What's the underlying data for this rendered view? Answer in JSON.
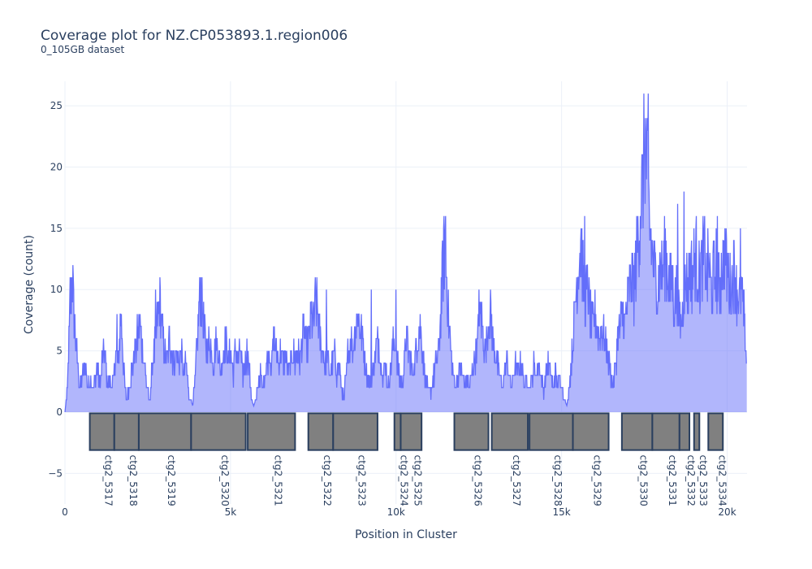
{
  "title": "Coverage plot for NZ.CP053893.1.region006",
  "subtitle": "0_105GB dataset",
  "colors": {
    "line": "#636efa",
    "fill": "rgba(99,110,250,0.5)",
    "gene_fill": "#808080",
    "gene_stroke": "#2a3f5f",
    "grid": "#ebf0f8"
  },
  "chart_data": {
    "type": "area",
    "xlabel": "Position in Cluster",
    "ylabel": "Coverage (count)",
    "xlim": [
      0,
      20600
    ],
    "ylim": [
      -7.5,
      27
    ],
    "x_ticks": [
      0,
      5000,
      10000,
      15000,
      20000
    ],
    "x_tick_labels": [
      "0",
      "5k",
      "10k",
      "15k",
      "20k"
    ],
    "y_ticks": [
      -5,
      0,
      5,
      10,
      15,
      20,
      25
    ],
    "y_tick_labels": [
      "−5",
      "0",
      "5",
      "10",
      "15",
      "20",
      "25"
    ],
    "grid": true,
    "coverage_profile": [
      [
        0,
        0
      ],
      [
        80,
        2
      ],
      [
        150,
        8
      ],
      [
        220,
        11
      ],
      [
        300,
        7
      ],
      [
        380,
        4
      ],
      [
        460,
        2
      ],
      [
        540,
        3
      ],
      [
        620,
        4
      ],
      [
        700,
        2
      ],
      [
        780,
        3
      ],
      [
        860,
        2
      ],
      [
        920,
        3
      ],
      [
        980,
        4
      ],
      [
        1050,
        2
      ],
      [
        1120,
        4
      ],
      [
        1200,
        5
      ],
      [
        1280,
        2
      ],
      [
        1350,
        3
      ],
      [
        1420,
        2
      ],
      [
        1480,
        3
      ],
      [
        1550,
        5
      ],
      [
        1620,
        4
      ],
      [
        1680,
        8
      ],
      [
        1730,
        6
      ],
      [
        1790,
        3
      ],
      [
        1850,
        1
      ],
      [
        1920,
        2
      ],
      [
        1990,
        3
      ],
      [
        2060,
        4
      ],
      [
        2130,
        5
      ],
      [
        2200,
        6
      ],
      [
        2280,
        7
      ],
      [
        2340,
        5
      ],
      [
        2410,
        4
      ],
      [
        2480,
        2
      ],
      [
        2550,
        1
      ],
      [
        2620,
        3
      ],
      [
        2700,
        5
      ],
      [
        2780,
        7
      ],
      [
        2860,
        9
      ],
      [
        2930,
        7
      ],
      [
        3000,
        5
      ],
      [
        3080,
        4
      ],
      [
        3150,
        6
      ],
      [
        3220,
        5
      ],
      [
        3300,
        4
      ],
      [
        3370,
        5
      ],
      [
        3440,
        4
      ],
      [
        3510,
        5
      ],
      [
        3580,
        3
      ],
      [
        3650,
        4
      ],
      [
        3720,
        2
      ],
      [
        3800,
        1
      ],
      [
        3860,
        0.5
      ],
      [
        3920,
        2
      ],
      [
        3980,
        5
      ],
      [
        4040,
        8
      ],
      [
        4100,
        10
      ],
      [
        4160,
        8
      ],
      [
        4220,
        6
      ],
      [
        4290,
        5
      ],
      [
        4360,
        6
      ],
      [
        4430,
        5
      ],
      [
        4500,
        4
      ],
      [
        4570,
        6
      ],
      [
        4640,
        5
      ],
      [
        4710,
        3
      ],
      [
        4790,
        5
      ],
      [
        4860,
        6
      ],
      [
        4930,
        4
      ],
      [
        5000,
        5
      ],
      [
        5080,
        3
      ],
      [
        5150,
        5
      ],
      [
        5230,
        4
      ],
      [
        5300,
        5
      ],
      [
        5370,
        3
      ],
      [
        5440,
        4
      ],
      [
        5510,
        5
      ],
      [
        5580,
        3
      ],
      [
        5640,
        1
      ],
      [
        5700,
        0.5
      ],
      [
        5760,
        1
      ],
      [
        5830,
        2
      ],
      [
        5900,
        3
      ],
      [
        5970,
        2
      ],
      [
        6040,
        3
      ],
      [
        6100,
        4
      ],
      [
        6170,
        5
      ],
      [
        6240,
        4
      ],
      [
        6310,
        6
      ],
      [
        6380,
        5
      ],
      [
        6450,
        4
      ],
      [
        6520,
        5
      ],
      [
        6600,
        4
      ],
      [
        6670,
        5
      ],
      [
        6740,
        3
      ],
      [
        6810,
        4
      ],
      [
        6880,
        5
      ],
      [
        6950,
        4
      ],
      [
        7020,
        5
      ],
      [
        7100,
        4
      ],
      [
        7160,
        6
      ],
      [
        7230,
        7
      ],
      [
        7300,
        5
      ],
      [
        7370,
        6
      ],
      [
        7440,
        8
      ],
      [
        7500,
        7
      ],
      [
        7560,
        9
      ],
      [
        7630,
        8
      ],
      [
        7700,
        6
      ],
      [
        7780,
        5
      ],
      [
        7850,
        4
      ],
      [
        7920,
        5
      ],
      [
        8000,
        3
      ],
      [
        8070,
        4
      ],
      [
        8140,
        5
      ],
      [
        8210,
        3
      ],
      [
        8280,
        4
      ],
      [
        8350,
        2
      ],
      [
        8420,
        1
      ],
      [
        8490,
        3
      ],
      [
        8560,
        5
      ],
      [
        8630,
        6
      ],
      [
        8700,
        5
      ],
      [
        8770,
        7
      ],
      [
        8840,
        8
      ],
      [
        8920,
        7
      ],
      [
        8990,
        6
      ],
      [
        9060,
        4
      ],
      [
        9130,
        3
      ],
      [
        9200,
        2
      ],
      [
        9270,
        3
      ],
      [
        9340,
        4
      ],
      [
        9400,
        5
      ],
      [
        9470,
        6
      ],
      [
        9540,
        4
      ],
      [
        9610,
        3
      ],
      [
        9680,
        4
      ],
      [
        9750,
        2
      ],
      [
        9820,
        3
      ],
      [
        9890,
        5
      ],
      [
        9960,
        6
      ],
      [
        10030,
        4
      ],
      [
        10100,
        3
      ],
      [
        10170,
        2
      ],
      [
        10240,
        4
      ],
      [
        10310,
        6
      ],
      [
        10380,
        5
      ],
      [
        10450,
        4
      ],
      [
        10520,
        3
      ],
      [
        10590,
        5
      ],
      [
        10660,
        6
      ],
      [
        10730,
        7
      ],
      [
        10800,
        5
      ],
      [
        10870,
        3
      ],
      [
        10940,
        2
      ],
      [
        11000,
        1.5
      ],
      [
        11070,
        2
      ],
      [
        11140,
        3
      ],
      [
        11220,
        4
      ],
      [
        11290,
        5
      ],
      [
        11360,
        9
      ],
      [
        11420,
        12
      ],
      [
        11480,
        14
      ],
      [
        11540,
        10
      ],
      [
        11600,
        7
      ],
      [
        11660,
        5
      ],
      [
        11730,
        3
      ],
      [
        11800,
        2
      ],
      [
        11870,
        3
      ],
      [
        11940,
        4
      ],
      [
        12010,
        3
      ],
      [
        12080,
        2
      ],
      [
        12150,
        3
      ],
      [
        12220,
        2
      ],
      [
        12290,
        3
      ],
      [
        12360,
        4
      ],
      [
        12430,
        5
      ],
      [
        12500,
        7
      ],
      [
        12570,
        8
      ],
      [
        12640,
        6
      ],
      [
        12710,
        5
      ],
      [
        12780,
        7
      ],
      [
        12850,
        8
      ],
      [
        12920,
        6
      ],
      [
        12990,
        5
      ],
      [
        13060,
        4
      ],
      [
        13130,
        3
      ],
      [
        13200,
        2
      ],
      [
        13270,
        3
      ],
      [
        13340,
        4
      ],
      [
        13410,
        3
      ],
      [
        13480,
        2
      ],
      [
        13550,
        3
      ],
      [
        13620,
        4
      ],
      [
        13690,
        3
      ],
      [
        13760,
        4
      ],
      [
        13830,
        3
      ],
      [
        13900,
        2
      ],
      [
        13970,
        3
      ],
      [
        14040,
        2
      ],
      [
        14110,
        3
      ],
      [
        14180,
        4
      ],
      [
        14250,
        3
      ],
      [
        14320,
        4
      ],
      [
        14390,
        3
      ],
      [
        14460,
        2
      ],
      [
        14530,
        3
      ],
      [
        14600,
        4
      ],
      [
        14670,
        3
      ],
      [
        14740,
        2
      ],
      [
        14810,
        3
      ],
      [
        14880,
        2
      ],
      [
        14950,
        3
      ],
      [
        15020,
        2
      ],
      [
        15090,
        1
      ],
      [
        15160,
        0.5
      ],
      [
        15230,
        2
      ],
      [
        15300,
        4
      ],
      [
        15370,
        7
      ],
      [
        15440,
        10
      ],
      [
        15510,
        12
      ],
      [
        15580,
        14
      ],
      [
        15650,
        11
      ],
      [
        15720,
        9
      ],
      [
        15790,
        10
      ],
      [
        15860,
        8
      ],
      [
        15930,
        7
      ],
      [
        16000,
        8
      ],
      [
        16070,
        7
      ],
      [
        16140,
        6
      ],
      [
        16210,
        7
      ],
      [
        16280,
        6
      ],
      [
        16350,
        5
      ],
      [
        16420,
        4
      ],
      [
        16490,
        3
      ],
      [
        16560,
        2
      ],
      [
        16630,
        4
      ],
      [
        16700,
        6
      ],
      [
        16770,
        7
      ],
      [
        16840,
        8
      ],
      [
        16910,
        7
      ],
      [
        16980,
        9
      ],
      [
        17050,
        10
      ],
      [
        17120,
        11
      ],
      [
        17190,
        10
      ],
      [
        17260,
        13
      ],
      [
        17330,
        15
      ],
      [
        17400,
        17
      ],
      [
        17460,
        19
      ],
      [
        17520,
        22
      ],
      [
        17580,
        20
      ],
      [
        17640,
        16
      ],
      [
        17700,
        14
      ],
      [
        17770,
        12
      ],
      [
        17840,
        11
      ],
      [
        17910,
        10
      ],
      [
        17980,
        12
      ],
      [
        18050,
        11
      ],
      [
        18120,
        13
      ],
      [
        18190,
        12
      ],
      [
        18260,
        10
      ],
      [
        18330,
        11
      ],
      [
        18400,
        9
      ],
      [
        18470,
        10
      ],
      [
        18540,
        8
      ],
      [
        18610,
        7
      ],
      [
        18680,
        9
      ],
      [
        18750,
        11
      ],
      [
        18820,
        10
      ],
      [
        18890,
        12
      ],
      [
        18960,
        11
      ],
      [
        19030,
        13
      ],
      [
        19100,
        12
      ],
      [
        19170,
        11
      ],
      [
        19240,
        12
      ],
      [
        19310,
        13
      ],
      [
        19380,
        11
      ],
      [
        19450,
        12
      ],
      [
        19520,
        10
      ],
      [
        19590,
        11
      ],
      [
        19660,
        12
      ],
      [
        19730,
        10
      ],
      [
        19800,
        11
      ],
      [
        19870,
        12
      ],
      [
        19940,
        13
      ],
      [
        20010,
        11
      ],
      [
        20080,
        10
      ],
      [
        20150,
        11
      ],
      [
        20220,
        12
      ],
      [
        20290,
        10
      ],
      [
        20360,
        9
      ],
      [
        20430,
        10
      ],
      [
        20500,
        8
      ],
      [
        20570,
        5
      ],
      [
        20600,
        4
      ]
    ],
    "peaks": [
      [
        160,
        11
      ],
      [
        1200,
        5
      ],
      [
        1570,
        8
      ],
      [
        2180,
        8
      ],
      [
        2740,
        10
      ],
      [
        4100,
        11
      ],
      [
        7900,
        10
      ],
      [
        9250,
        10
      ],
      [
        10000,
        10
      ],
      [
        11500,
        16
      ],
      [
        12500,
        10
      ],
      [
        15700,
        16
      ],
      [
        17620,
        26
      ],
      [
        17500,
        21
      ],
      [
        17970,
        18
      ],
      [
        18700,
        18
      ],
      [
        18500,
        17
      ],
      [
        19700,
        16
      ],
      [
        19950,
        16
      ],
      [
        20400,
        15
      ]
    ],
    "genes": [
      {
        "name": "ctg2_5317",
        "start": 750,
        "end": 1490
      },
      {
        "name": "ctg2_5318",
        "start": 1490,
        "end": 2230
      },
      {
        "name": "ctg2_5319",
        "start": 2230,
        "end": 3810
      },
      {
        "name": "ctg2_5320",
        "start": 3810,
        "end": 5460
      },
      {
        "name": "ctg2_5321",
        "start": 5520,
        "end": 6950
      },
      {
        "name": "ctg2_5322",
        "start": 7350,
        "end": 8100
      },
      {
        "name": "ctg2_5323",
        "start": 8100,
        "end": 9440
      },
      {
        "name": "ctg2_5324",
        "start": 9950,
        "end": 10140
      },
      {
        "name": "ctg2_5325",
        "start": 10140,
        "end": 10770
      },
      {
        "name": "ctg2_5326",
        "start": 11760,
        "end": 12790
      },
      {
        "name": "ctg2_5327",
        "start": 12890,
        "end": 13980
      },
      {
        "name": "ctg2_5328",
        "start": 14030,
        "end": 15340
      },
      {
        "name": "ctg2_5329",
        "start": 15340,
        "end": 16420
      },
      {
        "name": "ctg2_5330",
        "start": 16820,
        "end": 17740
      },
      {
        "name": "ctg2_5331",
        "start": 17740,
        "end": 18560
      },
      {
        "name": "ctg2_5332",
        "start": 18560,
        "end": 18860
      },
      {
        "name": "ctg2_5333",
        "start": 19000,
        "end": 19160
      },
      {
        "name": "ctg2_5334",
        "start": 19430,
        "end": 19870
      }
    ],
    "gene_track_y": [
      -3.1,
      -0.1
    ]
  }
}
